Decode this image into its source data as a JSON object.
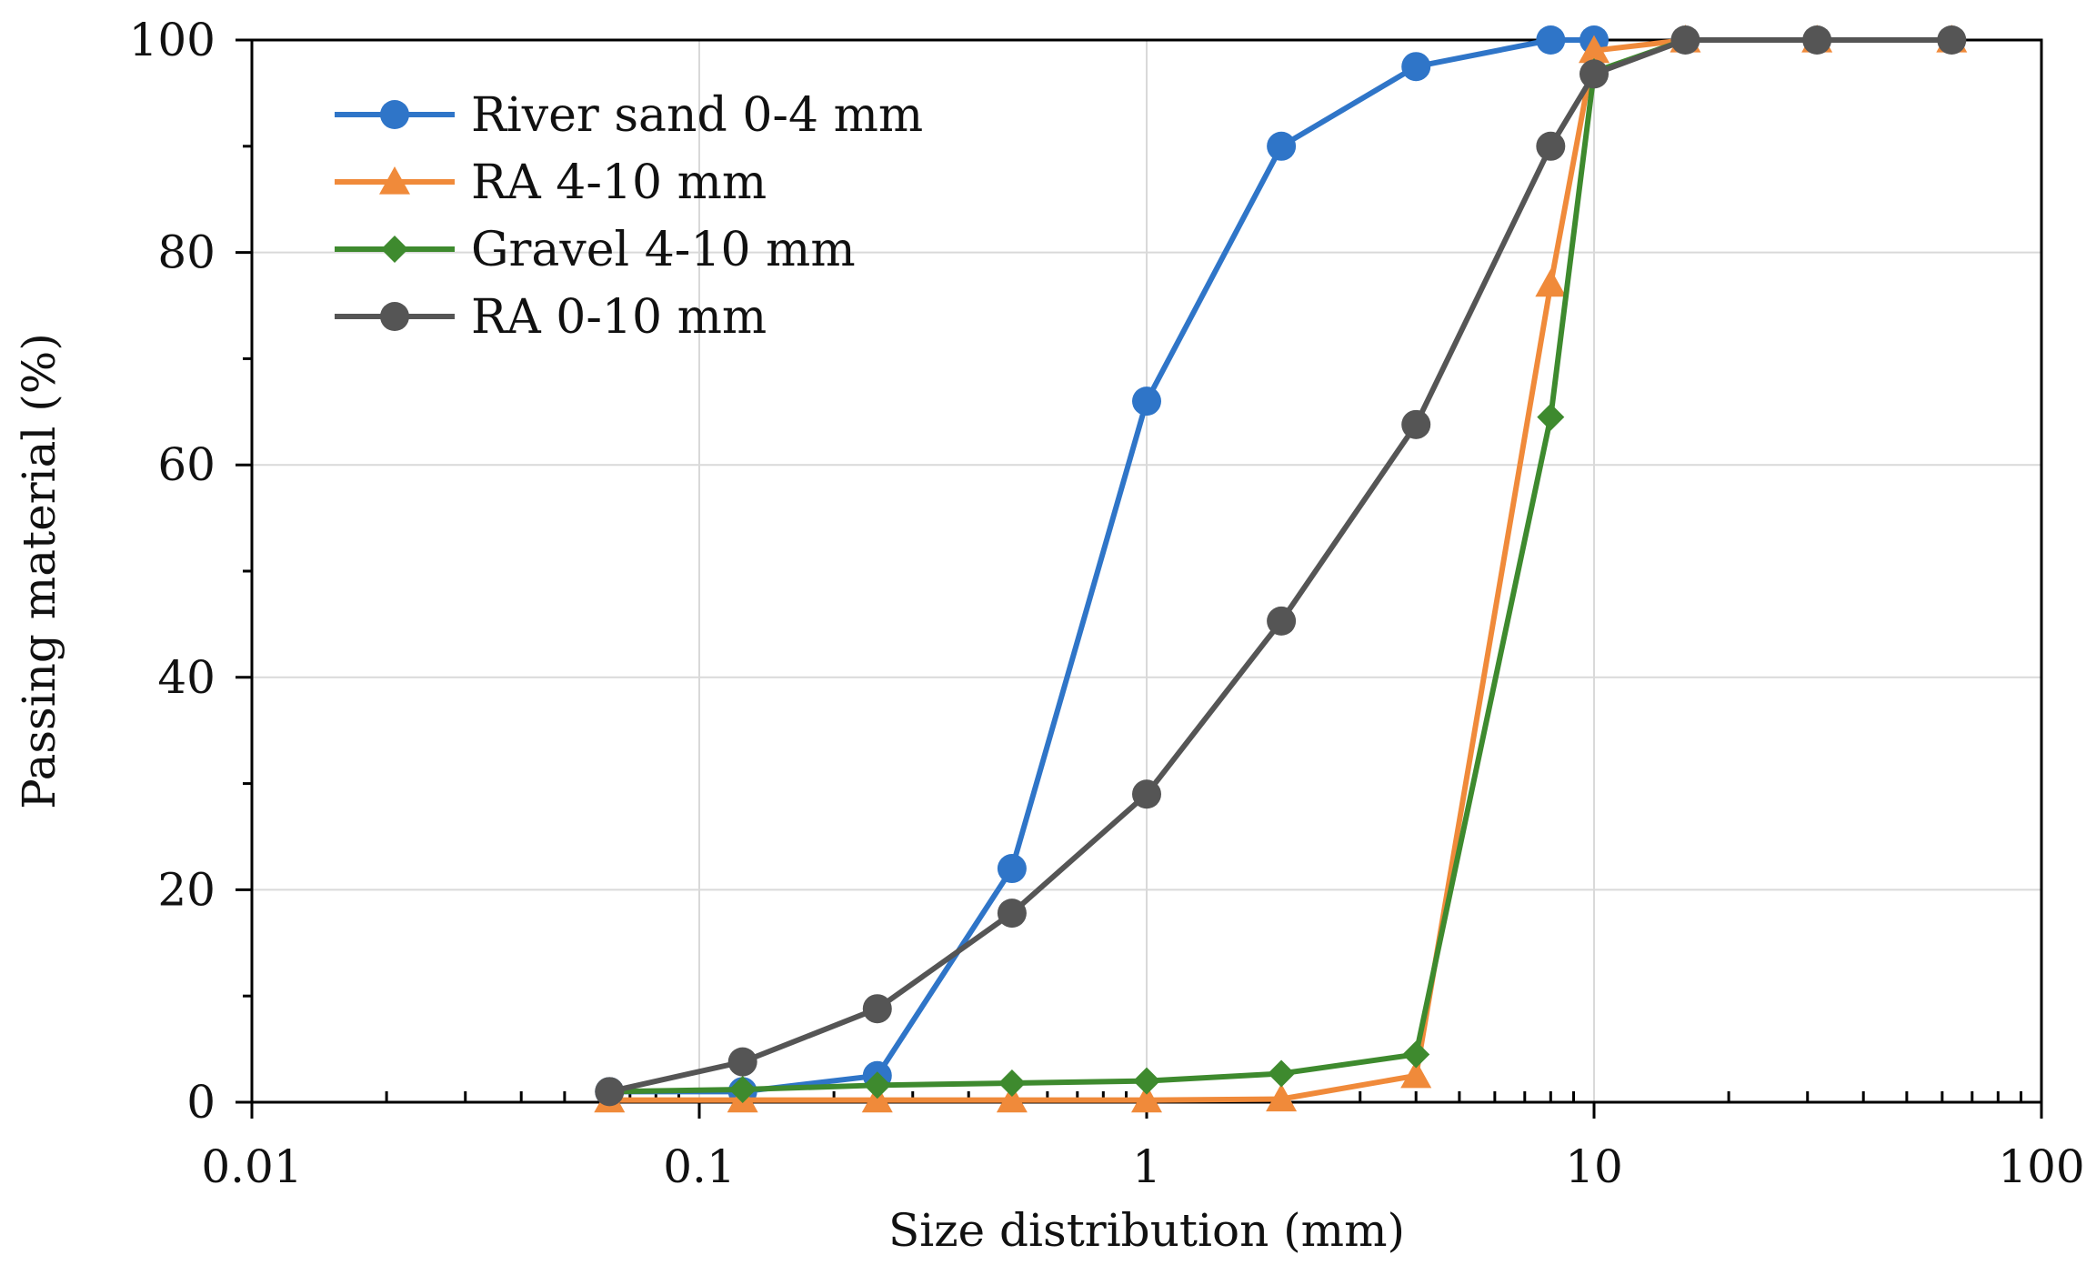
{
  "chart_data": {
    "type": "line",
    "title": "",
    "xlabel": "Size distribution (mm)",
    "ylabel": "Passing material (%)",
    "xscale": "log",
    "xlim": [
      0.01,
      100
    ],
    "ylim": [
      0,
      100
    ],
    "xticks": [
      {
        "value": 0.01,
        "label": "0.01"
      },
      {
        "value": 0.1,
        "label": "0.1"
      },
      {
        "value": 1,
        "label": "1"
      },
      {
        "value": 10,
        "label": "10"
      },
      {
        "value": 100,
        "label": "100"
      }
    ],
    "yticks": [
      {
        "value": 0,
        "label": "0"
      },
      {
        "value": 20,
        "label": "20"
      },
      {
        "value": 40,
        "label": "40"
      },
      {
        "value": 60,
        "label": "60"
      },
      {
        "value": 80,
        "label": "80"
      },
      {
        "value": 100,
        "label": "100"
      }
    ],
    "grid": true,
    "legend_position": "top-left",
    "series": [
      {
        "name": "River sand 0-4 mm",
        "color": "#2f75c8",
        "marker": "circle",
        "x": [
          0.063,
          0.125,
          0.25,
          0.5,
          1,
          2,
          4,
          8,
          10
        ],
        "y": [
          1,
          1,
          2.5,
          22,
          66,
          90,
          97.5,
          100,
          100
        ]
      },
      {
        "name": "RA 4-10 mm",
        "color": "#f08a3a",
        "marker": "triangle",
        "x": [
          0.063,
          0.125,
          0.25,
          0.5,
          1,
          2,
          4,
          8,
          10,
          16,
          31.5,
          63
        ],
        "y": [
          0.2,
          0.2,
          0.2,
          0.2,
          0.2,
          0.3,
          2.5,
          77,
          99,
          100,
          100,
          100
        ]
      },
      {
        "name": "Gravel 4-10 mm",
        "color": "#3e8a2e",
        "marker": "diamond",
        "x": [
          0.063,
          0.125,
          0.25,
          0.5,
          1,
          2,
          4,
          8,
          10,
          16,
          31.5,
          63
        ],
        "y": [
          1,
          1.2,
          1.6,
          1.8,
          2,
          2.7,
          4.5,
          64.5,
          97,
          100,
          100,
          100
        ]
      },
      {
        "name": "RA 0-10 mm",
        "color": "#555555",
        "marker": "circle",
        "x": [
          0.063,
          0.125,
          0.25,
          0.5,
          1,
          2,
          4,
          8,
          10,
          16,
          31.5,
          63
        ],
        "y": [
          1,
          3.8,
          8.8,
          17.8,
          29,
          45.3,
          63.8,
          90,
          96.8,
          100,
          100,
          100
        ]
      }
    ]
  }
}
